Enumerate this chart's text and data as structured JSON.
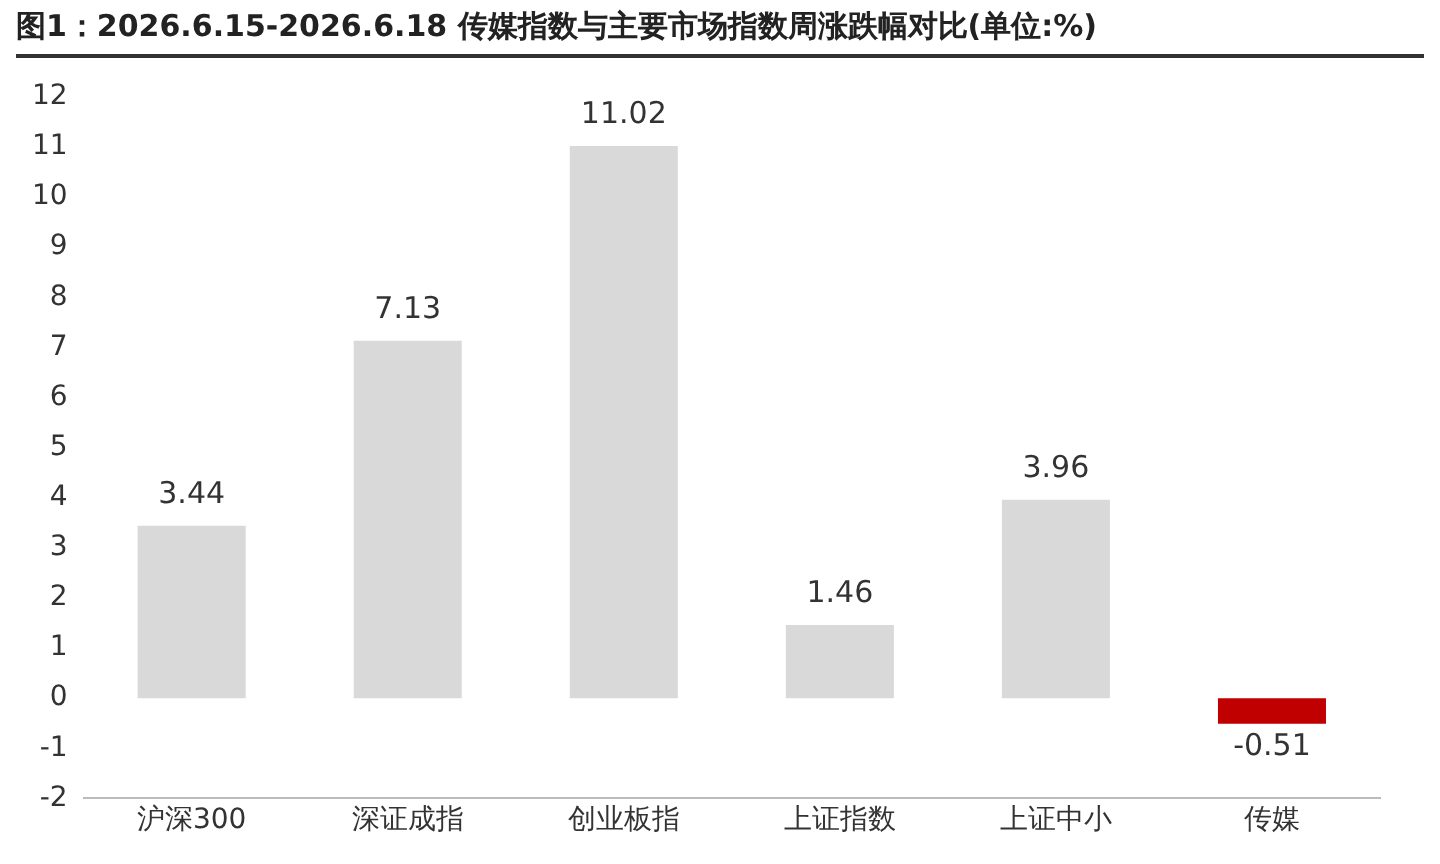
{
  "chart_data": {
    "type": "bar",
    "title": "图1：2026.6.15-2026.6.18 传媒指数与主要市场指数周涨跌幅对比(单位:%)",
    "categories": [
      "沪深300",
      "深证成指",
      "创业板指",
      "上证指数",
      "上证中小",
      "传媒"
    ],
    "values": [
      3.44,
      7.13,
      11.02,
      1.46,
      3.96,
      -0.51
    ],
    "colors": [
      "#d9d9d9",
      "#d9d9d9",
      "#d9d9d9",
      "#d9d9d9",
      "#d9d9d9",
      "#c00000"
    ],
    "ylim": [
      -2,
      12
    ],
    "yticks": [
      -2,
      -1,
      0,
      1,
      2,
      3,
      4,
      5,
      6,
      7,
      8,
      9,
      10,
      11,
      12
    ],
    "grid": false,
    "legend": false,
    "data_labels": true
  }
}
